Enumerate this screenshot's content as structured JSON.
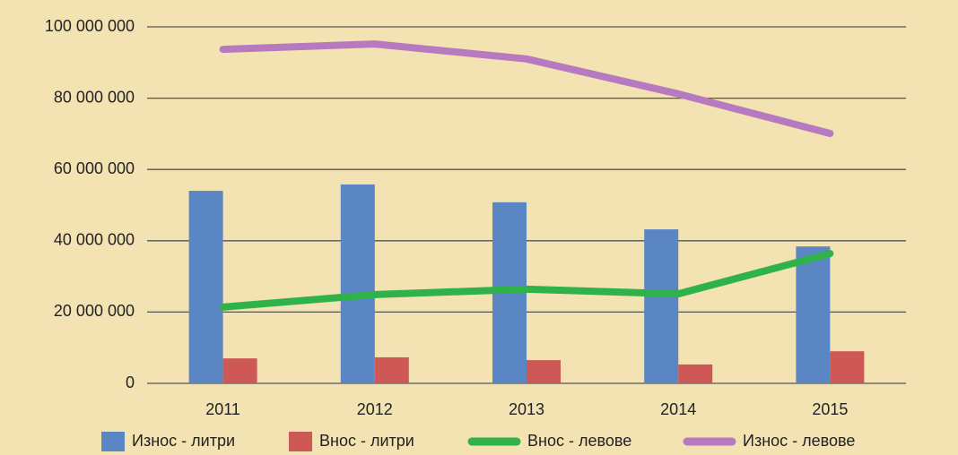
{
  "chart_data": {
    "type": "bar",
    "categories": [
      "2011",
      "2012",
      "2013",
      "2014",
      "2015"
    ],
    "series": [
      {
        "name": "Износ - литри",
        "type": "bar",
        "color": "#5b86c4",
        "values": [
          54000000,
          55800000,
          50800000,
          43200000,
          38400000
        ]
      },
      {
        "name": "Внос - литри",
        "type": "bar",
        "color": "#cd5856",
        "values": [
          7000000,
          7300000,
          6500000,
          5300000,
          9000000
        ]
      },
      {
        "name": "Внос - левове",
        "type": "line",
        "color": "#2fb24a",
        "values": [
          21400000,
          24900000,
          26400000,
          25100000,
          36400000
        ]
      },
      {
        "name": "Износ - левове",
        "type": "line",
        "color": "#b779bf",
        "values": [
          93700000,
          95200000,
          91000000,
          81200000,
          70100000
        ]
      }
    ],
    "ylim": [
      0,
      100000000
    ],
    "yticks": [
      0,
      {
        "value": 20000000,
        "label": "20 000 000"
      },
      {
        "value": 40000000,
        "label": "40 000 000"
      },
      {
        "value": 60000000,
        "label": "60 000 000"
      },
      {
        "value": 80000000,
        "label": "80 000 000"
      },
      {
        "value": 100000000,
        "label": "100 000 000"
      }
    ],
    "grid": true
  }
}
